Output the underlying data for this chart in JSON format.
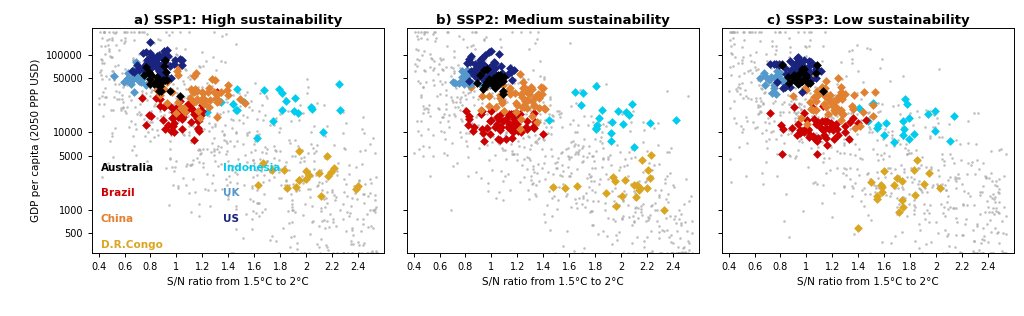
{
  "titles": [
    "a) SSP1: High sustainability",
    "b) SSP2: Medium sustainability",
    "c) SSP3: Low sustainability"
  ],
  "xlabel": "S/N ratio from 1.5°C to 2°C",
  "ylabel": "GDP per capita (2050 PPP USD)",
  "xlim": [
    0.35,
    2.6
  ],
  "ylim_log": [
    280,
    220000
  ],
  "xticks": [
    0.4,
    0.6,
    0.8,
    1.0,
    1.2,
    1.4,
    1.6,
    1.8,
    2.0,
    2.2,
    2.4
  ],
  "xtick_labels": [
    "0.4",
    "0.6",
    "0.8",
    "1",
    "1.2",
    "1.4",
    "1.6",
    "1.8",
    "2",
    "2.2",
    "2.4"
  ],
  "yticks": [
    500,
    1000,
    5000,
    10000,
    50000,
    100000
  ],
  "ytick_labels": [
    "500",
    "1000",
    "5000",
    "10000",
    "50000",
    "100000"
  ],
  "countries": {
    "Australia": {
      "color": "#000000"
    },
    "Brazil": {
      "color": "#CC0000"
    },
    "China": {
      "color": "#E08030"
    },
    "D.R.Congo": {
      "color": "#DAA520"
    },
    "Indonesia": {
      "color": "#00CCEE"
    },
    "UK": {
      "color": "#5599CC"
    },
    "US": {
      "color": "#1A237E"
    }
  },
  "bg_color": "#FFFFFF",
  "marker": "D",
  "gray_color": "#AAAAAA",
  "seed": 42,
  "country_configs": {
    "SSP1": {
      "Australia": {
        "n": 25,
        "sn_c": 0.88,
        "sn_s": 0.07,
        "gdp_c": 4.73,
        "gdp_s": 0.1
      },
      "Brazil": {
        "n": 55,
        "sn_c": 1.05,
        "sn_s": 0.13,
        "gdp_c": 4.2,
        "gdp_s": 0.12
      },
      "China": {
        "n": 55,
        "sn_c": 1.15,
        "sn_s": 0.15,
        "gdp_c": 4.48,
        "gdp_s": 0.15
      },
      "D.R.Congo": {
        "n": 20,
        "sn_c": 2.05,
        "sn_s": 0.22,
        "gdp_c": 3.48,
        "gdp_s": 0.15
      },
      "Indonesia": {
        "n": 22,
        "sn_c": 1.75,
        "sn_s": 0.28,
        "gdp_c": 4.33,
        "gdp_s": 0.18
      },
      "UK": {
        "n": 25,
        "sn_c": 0.7,
        "sn_s": 0.06,
        "gdp_c": 4.73,
        "gdp_s": 0.08
      },
      "US": {
        "n": 55,
        "sn_c": 0.87,
        "sn_s": 0.1,
        "gdp_c": 4.88,
        "gdp_s": 0.1
      }
    },
    "SSP2": {
      "Australia": {
        "n": 25,
        "sn_c": 1.0,
        "sn_s": 0.07,
        "gdp_c": 4.7,
        "gdp_s": 0.1
      },
      "Brazil": {
        "n": 55,
        "sn_c": 1.12,
        "sn_s": 0.13,
        "gdp_c": 4.12,
        "gdp_s": 0.12
      },
      "China": {
        "n": 55,
        "sn_c": 1.22,
        "sn_s": 0.15,
        "gdp_c": 4.42,
        "gdp_s": 0.15
      },
      "D.R.Congo": {
        "n": 20,
        "sn_c": 2.05,
        "sn_s": 0.22,
        "gdp_c": 3.35,
        "gdp_s": 0.15
      },
      "Indonesia": {
        "n": 22,
        "sn_c": 1.85,
        "sn_s": 0.28,
        "gdp_c": 4.2,
        "gdp_s": 0.18
      },
      "UK": {
        "n": 25,
        "sn_c": 0.8,
        "sn_s": 0.06,
        "gdp_c": 4.7,
        "gdp_s": 0.08
      },
      "US": {
        "n": 55,
        "sn_c": 0.97,
        "sn_s": 0.1,
        "gdp_c": 4.83,
        "gdp_s": 0.1
      }
    },
    "SSP3": {
      "Australia": {
        "n": 25,
        "sn_c": 0.95,
        "sn_s": 0.07,
        "gdp_c": 4.68,
        "gdp_s": 0.1
      },
      "Brazil": {
        "n": 55,
        "sn_c": 1.1,
        "sn_s": 0.15,
        "gdp_c": 4.08,
        "gdp_s": 0.13
      },
      "China": {
        "n": 55,
        "sn_c": 1.2,
        "sn_s": 0.17,
        "gdp_c": 4.38,
        "gdp_s": 0.16
      },
      "D.R.Congo": {
        "n": 20,
        "sn_c": 1.65,
        "sn_s": 0.2,
        "gdp_c": 3.25,
        "gdp_s": 0.15
      },
      "Indonesia": {
        "n": 22,
        "sn_c": 1.72,
        "sn_s": 0.25,
        "gdp_c": 4.12,
        "gdp_s": 0.18
      },
      "UK": {
        "n": 25,
        "sn_c": 0.75,
        "sn_s": 0.06,
        "gdp_c": 4.68,
        "gdp_s": 0.08
      },
      "US": {
        "n": 55,
        "sn_c": 0.92,
        "sn_s": 0.1,
        "gdp_c": 4.8,
        "gdp_s": 0.1
      }
    }
  },
  "legend_left": [
    [
      "Australia",
      "#000000"
    ],
    [
      "Brazil",
      "#CC0000"
    ],
    [
      "China",
      "#E08030"
    ],
    [
      "D.R.Congo",
      "#DAA520"
    ]
  ],
  "legend_right": [
    [
      "Indonesia",
      "#00CCEE"
    ],
    [
      "UK",
      "#5599CC"
    ],
    [
      "US",
      "#1A237E"
    ]
  ]
}
